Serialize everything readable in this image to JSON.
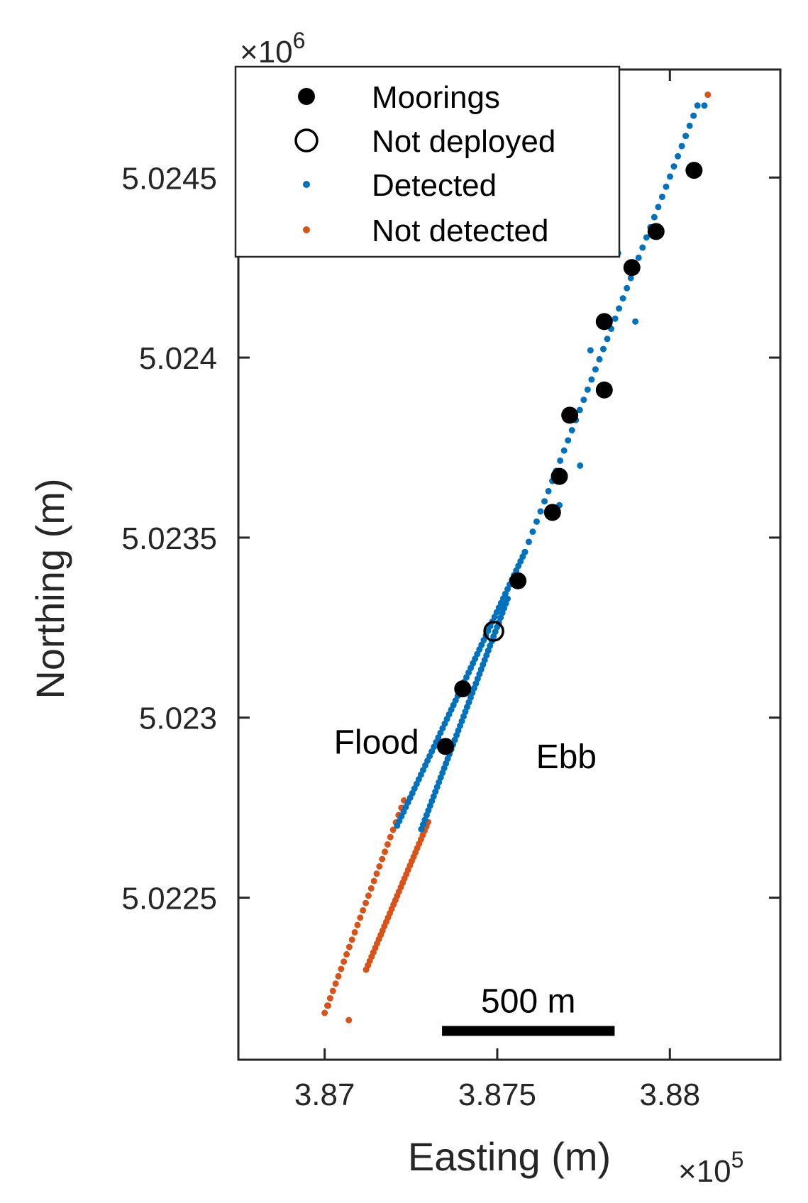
{
  "chart_data": {
    "type": "scatter",
    "xlabel": "Easting (m)",
    "ylabel": "Northing (m)",
    "x_multiplier": {
      "prefix": "×10",
      "exp": "5"
    },
    "y_multiplier": {
      "prefix": "×10",
      "exp": "6"
    },
    "xlim": [
      3.8675,
      3.8832
    ],
    "ylim": [
      5.02205,
      5.0248
    ],
    "xticks": [
      {
        "value": 3.87,
        "label": "3.87"
      },
      {
        "value": 3.875,
        "label": "3.875"
      },
      {
        "value": 3.88,
        "label": "3.88"
      }
    ],
    "yticks": [
      {
        "value": 5.0225,
        "label": "5.0225"
      },
      {
        "value": 5.023,
        "label": "5.023"
      },
      {
        "value": 5.0235,
        "label": "5.0235"
      },
      {
        "value": 5.024,
        "label": "5.024"
      },
      {
        "value": 5.0245,
        "label": "5.0245"
      }
    ],
    "legend": {
      "position": "top-left",
      "entries": [
        {
          "label": "Moorings",
          "marker": "filled-circle"
        },
        {
          "label": "Not deployed",
          "marker": "open-circle"
        },
        {
          "label": "Detected",
          "marker": "dot",
          "color": "#0072BD"
        },
        {
          "label": "Not detected",
          "marker": "dot",
          "color": "#D95319"
        }
      ]
    },
    "annotations": [
      {
        "text": "Flood",
        "x": 3.8715,
        "y": 5.0229
      },
      {
        "text": "Ebb",
        "x": 3.877,
        "y": 5.02286
      }
    ],
    "scale_bar": {
      "label": "500 m",
      "x_start": 3.8734,
      "x_end": 3.8784,
      "y": 5.02213
    },
    "series": [
      {
        "name": "Moorings",
        "points": [
          [
            3.8735,
            5.02292
          ],
          [
            3.874,
            5.02308
          ],
          [
            3.8756,
            5.02338
          ],
          [
            3.8766,
            5.02357
          ],
          [
            3.8768,
            5.02367
          ],
          [
            3.8771,
            5.02384
          ],
          [
            3.8781,
            5.02391
          ],
          [
            3.8781,
            5.0241
          ],
          [
            3.8789,
            5.02425
          ],
          [
            3.8796,
            5.02435
          ],
          [
            3.8807,
            5.02452
          ]
        ]
      },
      {
        "name": "Not deployed",
        "points": [
          [
            3.8749,
            5.02324
          ]
        ]
      },
      {
        "name": "Detected",
        "segments": [
          {
            "from": [
              3.8721,
              5.0227
            ],
            "to": [
              3.8758,
              5.02346
            ],
            "n": 60
          },
          {
            "from": [
              3.8728,
              5.02269
            ],
            "to": [
              3.8753,
              5.02333
            ],
            "n": 50
          },
          {
            "from": [
              3.8758,
              5.02346
            ],
            "to": [
              3.8808,
              5.0247
            ],
            "n": 45
          }
        ],
        "points": [
          [
            3.8771,
            5.02384
          ],
          [
            3.8781,
            5.0241
          ],
          [
            3.879,
            5.0241
          ],
          [
            3.8768,
            5.02359
          ],
          [
            3.8774,
            5.0237
          ],
          [
            3.8777,
            5.02402
          ],
          [
            3.8785,
            5.02429
          ],
          [
            3.881,
            5.0247
          ]
        ]
      },
      {
        "name": "Not detected",
        "segments": [
          {
            "from": [
              3.87,
              5.02218
            ],
            "to": [
              3.8723,
              5.02277
            ],
            "n": 30
          },
          {
            "from": [
              3.8712,
              5.0223
            ],
            "to": [
              3.873,
              5.02271
            ],
            "n": 35
          }
        ],
        "points": [
          [
            3.8707,
            5.02216
          ],
          [
            3.8701,
            5.0222
          ],
          [
            3.8811,
            5.02473
          ]
        ]
      }
    ]
  }
}
